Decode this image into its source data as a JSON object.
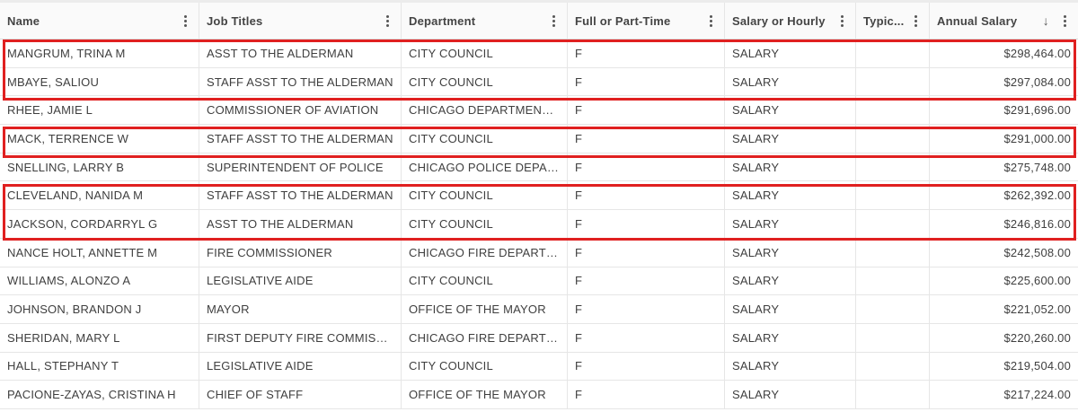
{
  "columns": [
    {
      "label": "Name"
    },
    {
      "label": "Job Titles"
    },
    {
      "label": "Department"
    },
    {
      "label": "Full or Part-Time"
    },
    {
      "label": "Salary or Hourly"
    },
    {
      "label": "Typic..."
    },
    {
      "label": "Annual Salary"
    }
  ],
  "sort_icon": "arrow-down-icon",
  "highlight_color": "#e02020",
  "rows": [
    [
      "MANGRUM, TRINA M",
      "ASST TO THE ALDERMAN",
      "CITY COUNCIL",
      "F",
      "SALARY",
      "",
      "$298,464.00"
    ],
    [
      "MBAYE, SALIOU",
      "STAFF ASST TO THE ALDERMAN",
      "CITY COUNCIL",
      "F",
      "SALARY",
      "",
      "$297,084.00"
    ],
    [
      "RHEE, JAMIE L",
      "COMMISSIONER OF AVIATION",
      "CHICAGO DEPARTMENT OF...",
      "F",
      "SALARY",
      "",
      "$291,696.00"
    ],
    [
      "MACK, TERRENCE W",
      "STAFF ASST TO THE ALDERMAN",
      "CITY COUNCIL",
      "F",
      "SALARY",
      "",
      "$291,000.00"
    ],
    [
      "SNELLING, LARRY B",
      "SUPERINTENDENT OF POLICE",
      "CHICAGO POLICE DEPART...",
      "F",
      "SALARY",
      "",
      "$275,748.00"
    ],
    [
      "CLEVELAND, NANIDA M",
      "STAFF ASST TO THE ALDERMAN",
      "CITY COUNCIL",
      "F",
      "SALARY",
      "",
      "$262,392.00"
    ],
    [
      "JACKSON, CORDARRYL G",
      "ASST TO THE ALDERMAN",
      "CITY COUNCIL",
      "F",
      "SALARY",
      "",
      "$246,816.00"
    ],
    [
      "NANCE HOLT, ANNETTE M",
      "FIRE COMMISSIONER",
      "CHICAGO FIRE DEPARTMENT",
      "F",
      "SALARY",
      "",
      "$242,508.00"
    ],
    [
      "WILLIAMS, ALONZO A",
      "LEGISLATIVE AIDE",
      "CITY COUNCIL",
      "F",
      "SALARY",
      "",
      "$225,600.00"
    ],
    [
      "JOHNSON, BRANDON J",
      "MAYOR",
      "OFFICE OF THE MAYOR",
      "F",
      "SALARY",
      "",
      "$221,052.00"
    ],
    [
      "SHERIDAN, MARY L",
      "FIRST DEPUTY FIRE COMMISSION...",
      "CHICAGO FIRE DEPARTMENT",
      "F",
      "SALARY",
      "",
      "$220,260.00"
    ],
    [
      "HALL, STEPHANY T",
      "LEGISLATIVE AIDE",
      "CITY COUNCIL",
      "F",
      "SALARY",
      "",
      "$219,504.00"
    ],
    [
      "PACIONE-ZAYAS, CRISTINA H",
      "CHIEF OF STAFF",
      "OFFICE OF THE MAYOR",
      "F",
      "SALARY",
      "",
      "$217,224.00"
    ]
  ]
}
